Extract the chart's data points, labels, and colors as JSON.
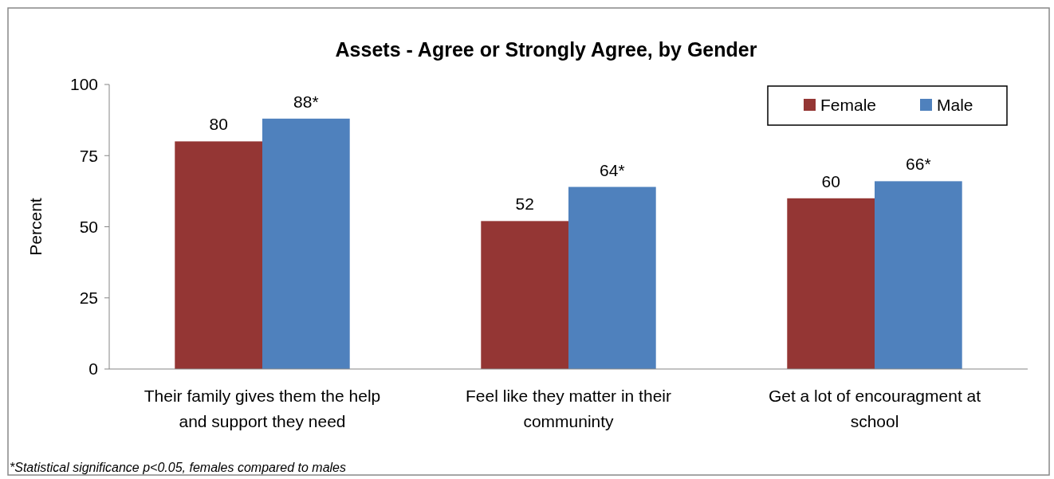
{
  "chart_data": {
    "type": "bar",
    "title": "Assets - Agree or Strongly Agree, by Gender",
    "ylabel": "Percent",
    "categories": [
      "Their family gives them the help and support they need",
      "Feel like they matter in their communinty",
      "Get a lot of encouragment at school"
    ],
    "series": [
      {
        "name": "Female",
        "color": "#943634",
        "values": [
          80,
          52,
          60
        ],
        "value_labels": [
          "80",
          "52",
          "60"
        ]
      },
      {
        "name": "Male",
        "color": "#4f81bd",
        "values": [
          88,
          64,
          66
        ],
        "value_labels": [
          "88*",
          "64*",
          "66*"
        ]
      }
    ],
    "ylim": [
      0,
      100
    ],
    "yticks": [
      0,
      25,
      50,
      75,
      100
    ],
    "grid": false,
    "legend": "top right",
    "annotations": [
      "*Statistical significance p<0.05, females compared to males"
    ]
  }
}
